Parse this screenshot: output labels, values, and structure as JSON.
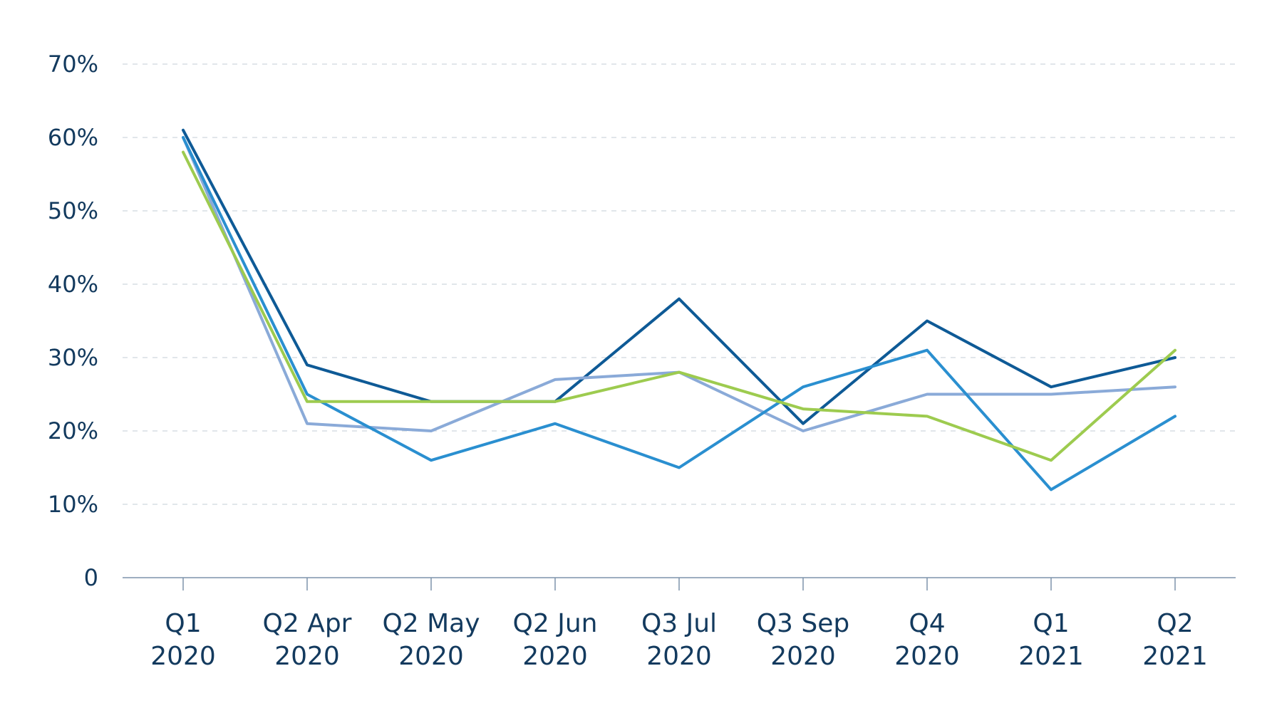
{
  "chart_data": {
    "type": "line",
    "title": "",
    "xlabel": "",
    "ylabel": "",
    "categories": [
      [
        "Q1",
        "2020"
      ],
      [
        "Q2 Apr",
        "2020"
      ],
      [
        "Q2 May",
        "2020"
      ],
      [
        "Q2 Jun",
        "2020"
      ],
      [
        "Q3 Jul",
        "2020"
      ],
      [
        "Q3 Sep",
        "2020"
      ],
      [
        "Q4",
        "2020"
      ],
      [
        "Q1",
        "2021"
      ],
      [
        "Q2",
        "2021"
      ]
    ],
    "yticks": [
      "0",
      "10%",
      "20%",
      "30%",
      "40%",
      "50%",
      "60%",
      "70%"
    ],
    "ylim": [
      0,
      70
    ],
    "grid": true,
    "legend": "none",
    "series": [
      {
        "color": "#0e5a96",
        "values": [
          61,
          29,
          24,
          24,
          38,
          21,
          35,
          26,
          30
        ]
      },
      {
        "color": "#8aaad8",
        "values": [
          60,
          21,
          20,
          27,
          28,
          20,
          25,
          25,
          26
        ]
      },
      {
        "color": "#2a8fd0",
        "values": [
          60,
          25,
          16,
          21,
          15,
          26,
          31,
          12,
          22
        ]
      },
      {
        "color": "#9dcb4f",
        "values": [
          58,
          24,
          24,
          24,
          28,
          23,
          22,
          16,
          31
        ]
      }
    ]
  }
}
